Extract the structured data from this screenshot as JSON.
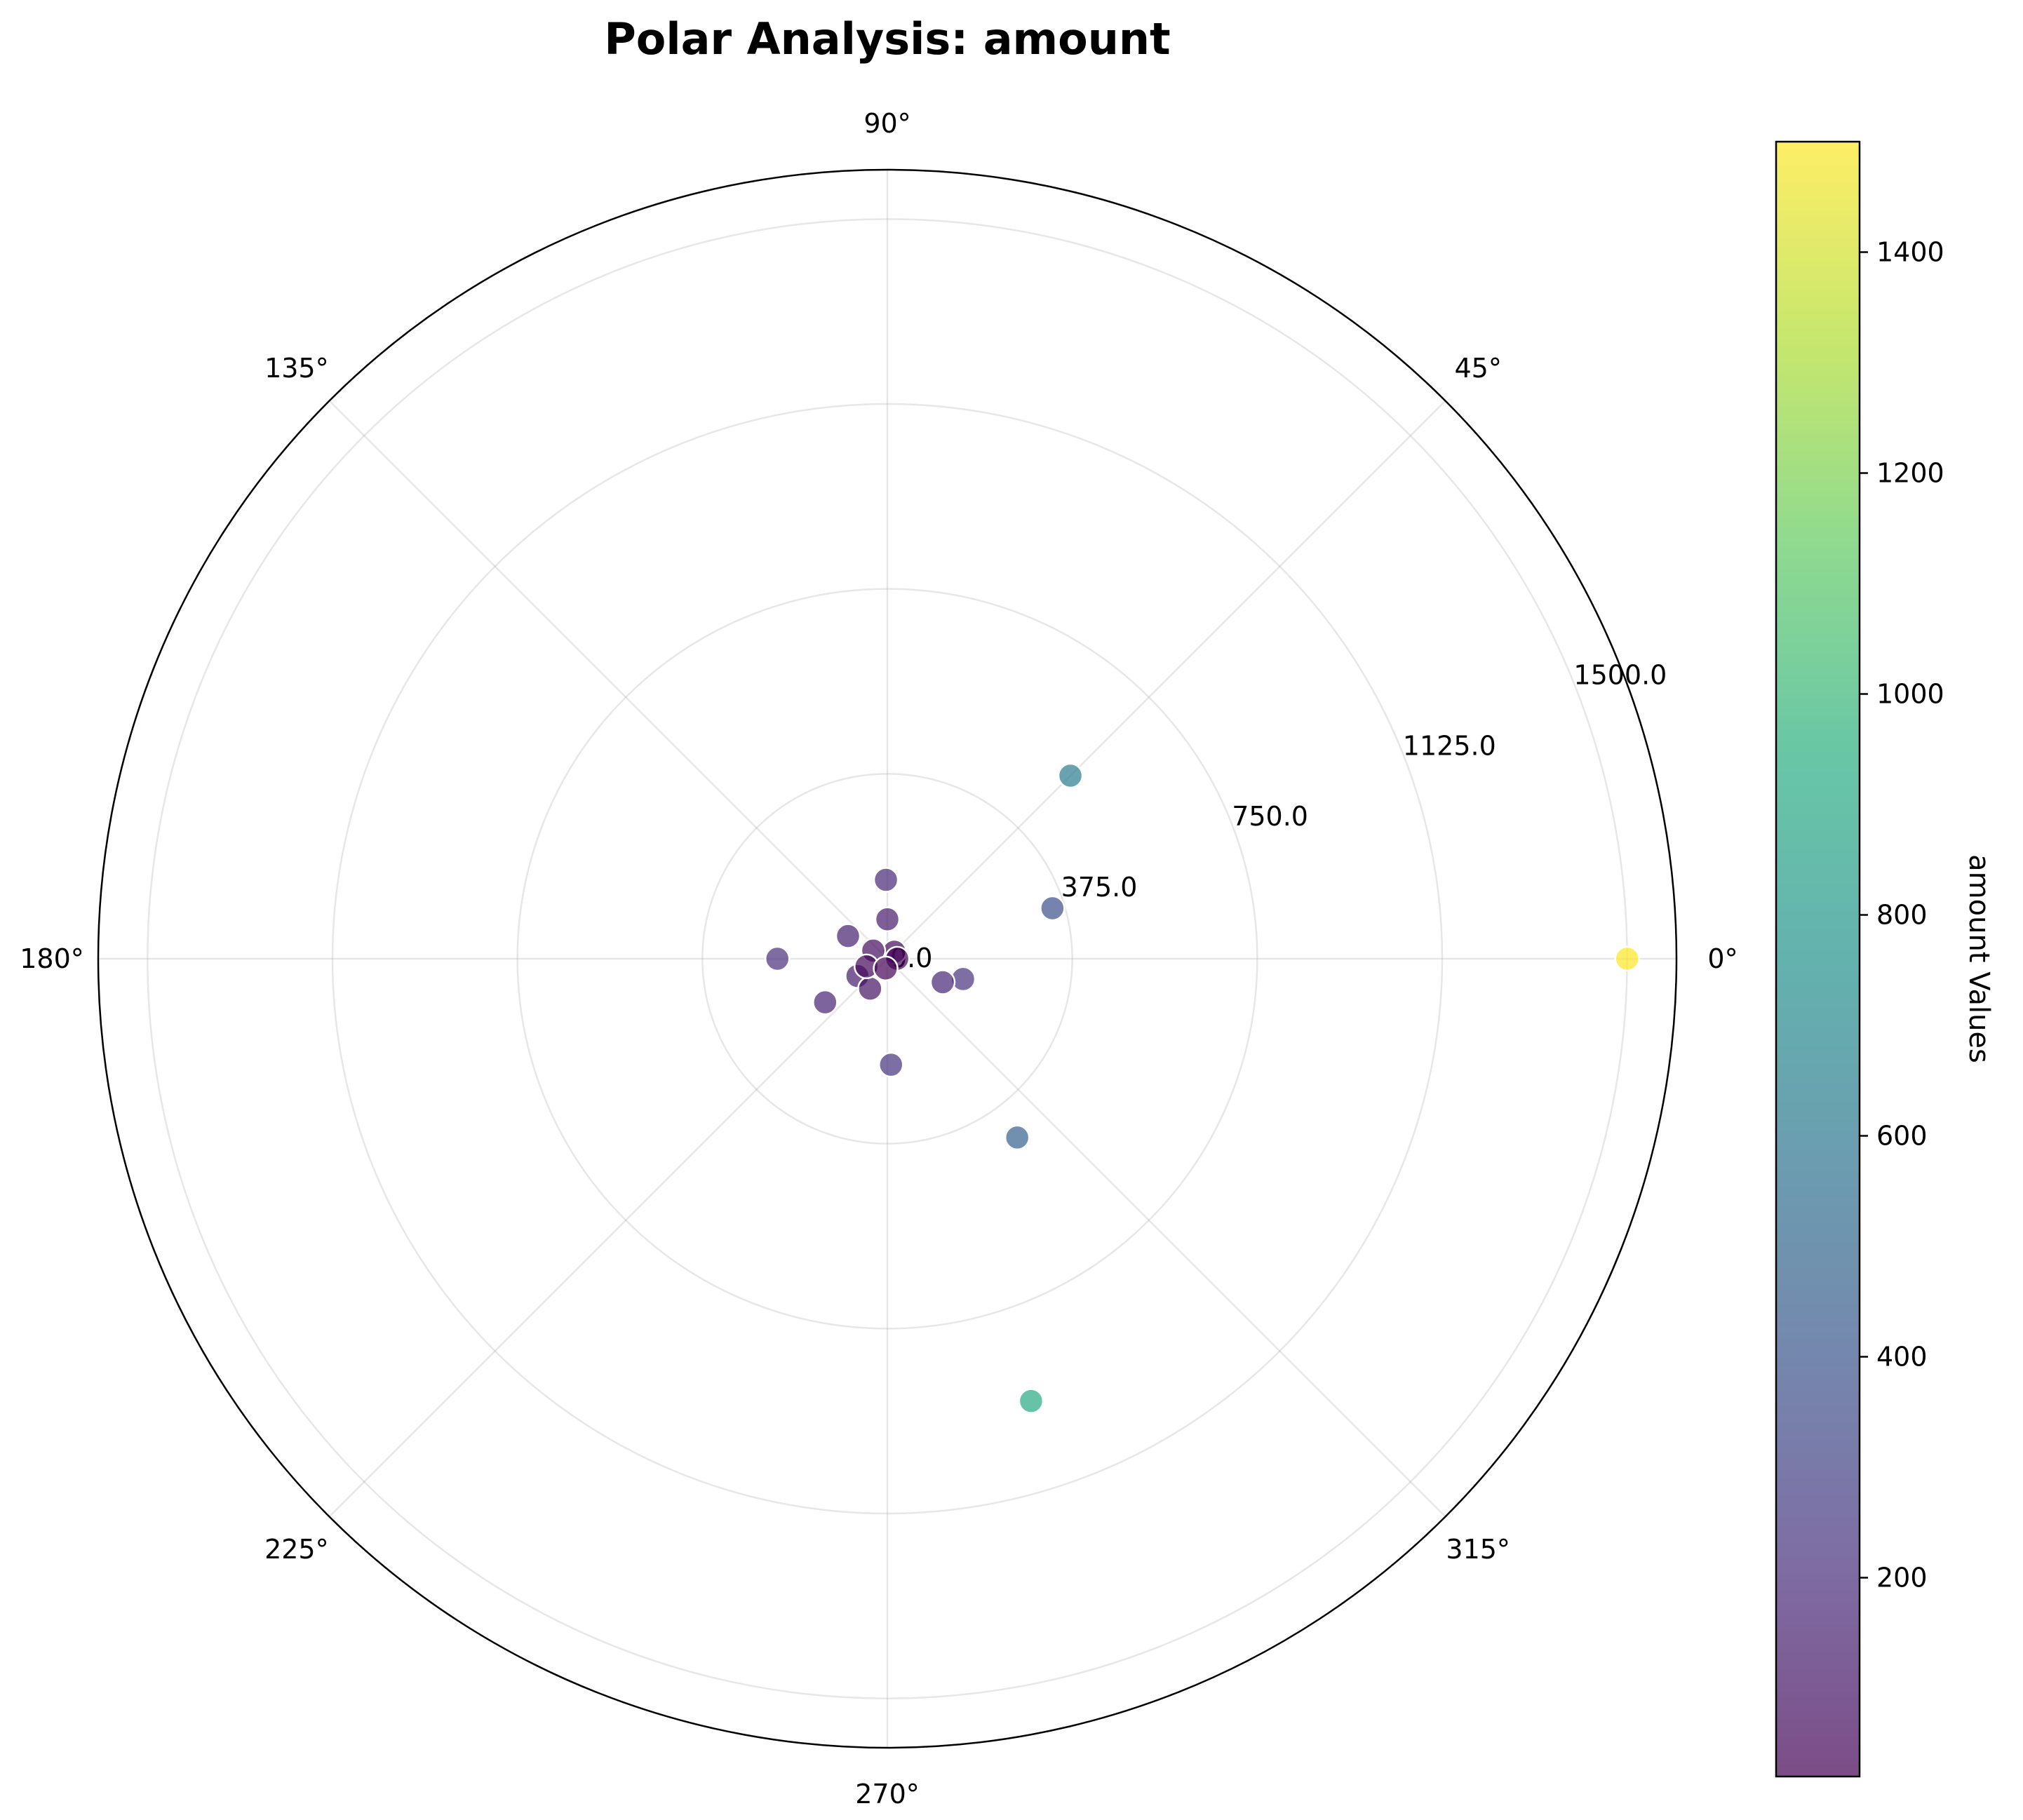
{
  "chart_data": {
    "type": "scatter",
    "projection": "polar",
    "title": "Polar Analysis: amount",
    "theta_unit": "degrees",
    "theta_ticks": [
      "0°",
      "45°",
      "90°",
      "135°",
      "180°",
      "225°",
      "270°",
      "315°"
    ],
    "theta_tick_values": [
      0,
      45,
      90,
      135,
      180,
      225,
      270,
      315
    ],
    "r_ticks": [
      "0.0",
      "375.0",
      "750.0",
      "1125.0",
      "1500.0"
    ],
    "r_tick_values": [
      0,
      375,
      750,
      1125,
      1500
    ],
    "rlim": [
      0,
      1600
    ],
    "grid": true,
    "colormap": "viridis",
    "marker_alpha": 0.7,
    "colorbar": {
      "label": "amount Values",
      "ticks": [
        "200",
        "400",
        "600",
        "800",
        "1000",
        "1200",
        "1400"
      ],
      "tick_values": [
        200,
        400,
        600,
        800,
        1000,
        1200,
        1400
      ],
      "range": [
        20,
        1500
      ],
      "position": "right"
    },
    "points": [
      {
        "theta": 0,
        "r": 1500,
        "value": 1500
      },
      {
        "theta": 45,
        "r": 525,
        "value": 620
      },
      {
        "theta": 17,
        "r": 350,
        "value": 380
      },
      {
        "theta": 306,
        "r": 448,
        "value": 470
      },
      {
        "theta": 288,
        "r": 943,
        "value": 920
      },
      {
        "theta": 345,
        "r": 159,
        "value": 220
      },
      {
        "theta": 337,
        "r": 122,
        "value": 170
      },
      {
        "theta": 91,
        "r": 160,
        "value": 180
      },
      {
        "theta": 272,
        "r": 215,
        "value": 230
      },
      {
        "theta": 180,
        "r": 223,
        "value": 210
      },
      {
        "theta": 215,
        "r": 154,
        "value": 160
      },
      {
        "theta": 210,
        "r": 70,
        "value": 130
      },
      {
        "theta": 240,
        "r": 70,
        "value": 90
      },
      {
        "theta": 150,
        "r": 92,
        "value": 140
      },
      {
        "theta": 90,
        "r": 80,
        "value": 120
      },
      {
        "theta": 45,
        "r": 20,
        "value": 60
      },
      {
        "theta": 150,
        "r": 33,
        "value": 70
      },
      {
        "theta": 0,
        "r": 20,
        "value": 40
      },
      {
        "theta": 200,
        "r": 45,
        "value": 50
      },
      {
        "theta": 260,
        "r": 20,
        "value": 30
      }
    ]
  }
}
